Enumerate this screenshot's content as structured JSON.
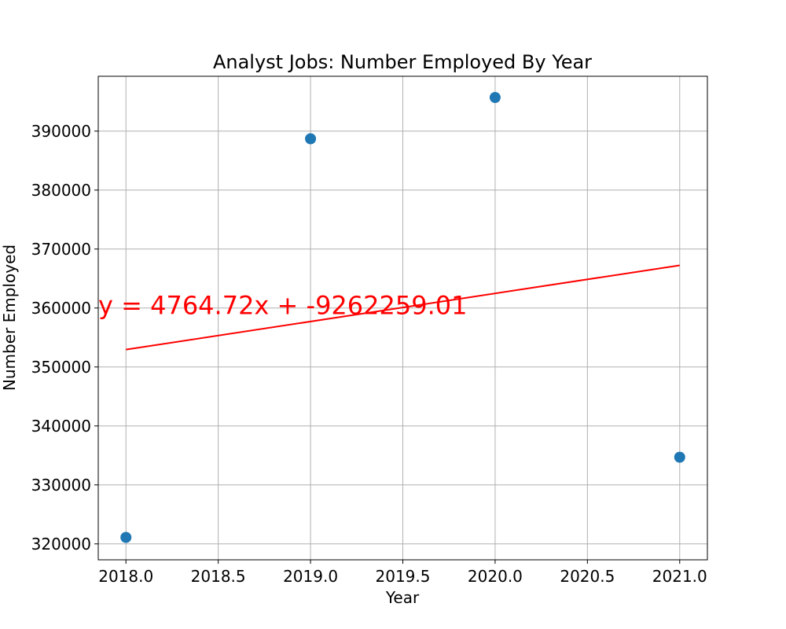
{
  "chart_data": {
    "type": "scatter",
    "title": "Analyst Jobs: Number Employed By Year",
    "xlabel": "Year",
    "ylabel": "Number Employed",
    "xlim": [
      2017.85,
      2021.15
    ],
    "ylim": [
      317300,
      399300
    ],
    "x_ticks": [
      2018.0,
      2018.5,
      2019.0,
      2019.5,
      2020.0,
      2020.5,
      2021.0
    ],
    "x_tick_labels": [
      "2018.0",
      "2018.5",
      "2019.0",
      "2019.5",
      "2020.0",
      "2020.5",
      "2021.0"
    ],
    "y_ticks": [
      320000,
      330000,
      340000,
      350000,
      360000,
      370000,
      380000,
      390000
    ],
    "y_tick_labels": [
      "320000",
      "330000",
      "340000",
      "350000",
      "360000",
      "370000",
      "380000",
      "390000"
    ],
    "grid": true,
    "series": [
      {
        "x": [
          2018,
          2019,
          2020,
          2021
        ],
        "y": [
          321100,
          388700,
          395700,
          334700
        ],
        "color": "#1f77b4"
      }
    ],
    "regression": {
      "slope": 4764.72,
      "intercept": -9262259.01,
      "x_range": [
        2018,
        2021
      ],
      "color": "#ff0000",
      "equation_text": "y = 4764.72x + -9262259.01",
      "equation_position_data": [
        2017.85,
        359000
      ]
    }
  }
}
